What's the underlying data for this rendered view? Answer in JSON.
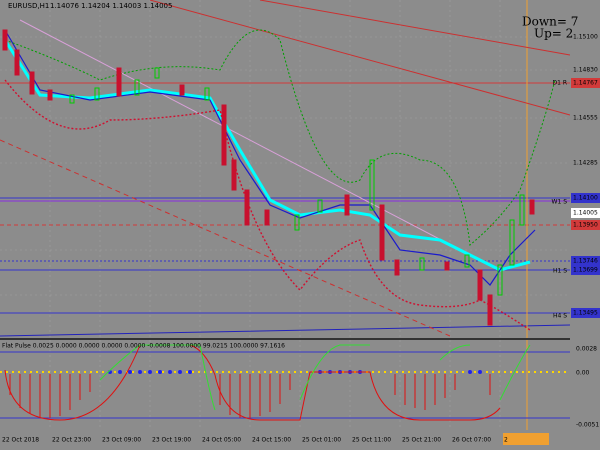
{
  "header": {
    "symbol": "EURUSD,H1",
    "quotes": "1.14076 1.14204 1.14003 1.14005"
  },
  "signals": {
    "down": "Down= 7",
    "up": "Up= 2"
  },
  "price_axis": [
    "1.15100",
    "1.14830",
    "1.14767",
    "1.14555",
    "1.14285",
    "1.14100",
    "1.14005",
    "1.13950",
    "1.13746",
    "1.13699",
    "1.13495"
  ],
  "levels": [
    "D1 R",
    "W1 S",
    "H1 S",
    "H4 S"
  ],
  "indicator": {
    "title": "Flat Pulse 0.0025 0.0000 0.0000 0.0000 0.0000 -0.0008 100.0000 99.0215 100.0000 97.1616",
    "axis": [
      "0.0028",
      "0.00",
      "-0.0051"
    ]
  },
  "time_axis": [
    "22 Oct 2018",
    "22 Oct 23:00",
    "23 Oct 09:00",
    "23 Oct 19:00",
    "24 Oct 05:00",
    "24 Oct 15:00",
    "25 Oct 01:00",
    "25 Oct 11:00",
    "25 Oct 21:00",
    "26 Oct 07:00",
    "2"
  ]
}
